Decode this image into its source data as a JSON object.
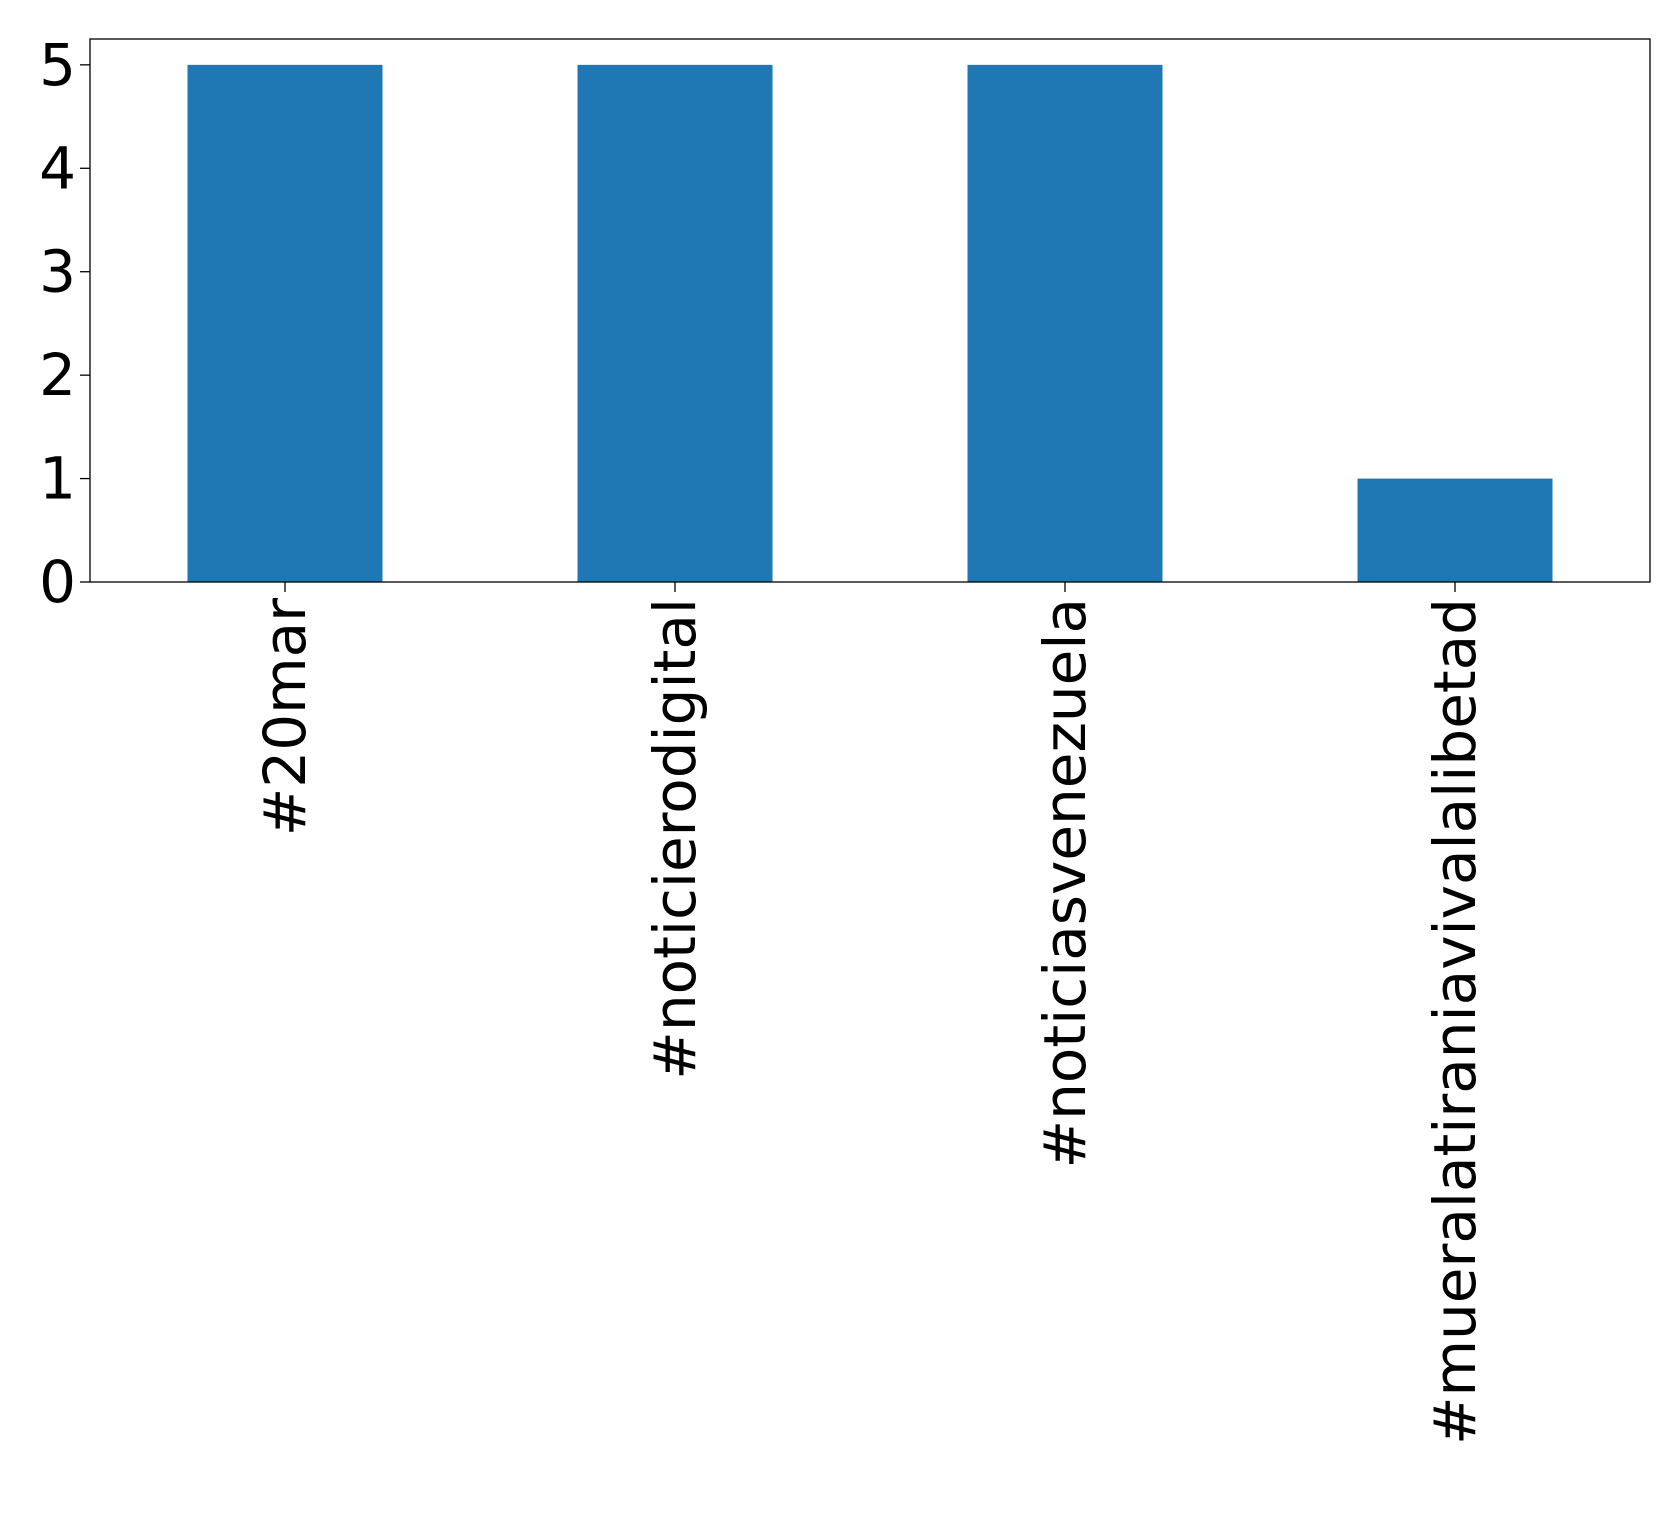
{
  "chart_data": {
    "type": "bar",
    "categories": [
      "#20mar",
      "#noticierodigital",
      "#noticiasvenezuela",
      "#mueralatiraniavivalalibetad"
    ],
    "values": [
      5,
      5,
      5,
      1
    ],
    "title": "",
    "xlabel": "",
    "ylabel": "",
    "ylim": [
      0,
      5.25
    ],
    "yticks": [
      0,
      1,
      2,
      3,
      4,
      5
    ],
    "grid": false,
    "legend": "none",
    "bar_color": "#1f77b4"
  }
}
